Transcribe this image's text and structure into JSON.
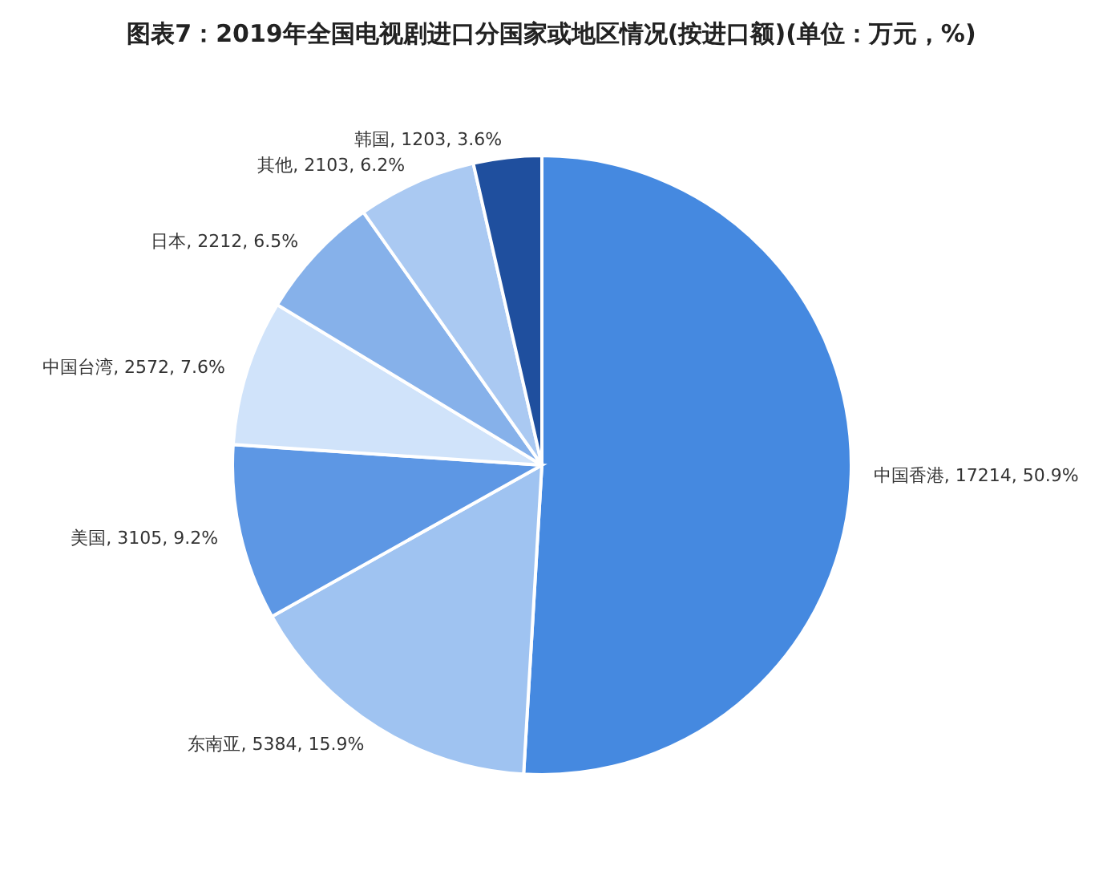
{
  "chart_data": {
    "type": "pie",
    "title": "图表7：2019年全国电视剧进口分国家或地区情况(按进口额)(单位：万元，%)",
    "categories": [
      "中国香港",
      "东南亚",
      "美国",
      "中国台湾",
      "日本",
      "其他",
      "韩国"
    ],
    "values": [
      17214,
      5384,
      3105,
      2572,
      2212,
      2103,
      1203
    ],
    "value_labels": [
      "17214, 50.9%",
      "5384, 15.9%",
      "3105, 9.2%",
      "2572, 7.6%",
      "2212, 6.5%",
      "2103, 6.2%",
      "1203, 3.6%"
    ],
    "colors": [
      "#4589e0",
      "#9fc3f1",
      "#5d97e4",
      "#d0e3fa",
      "#86b1ea",
      "#aac9f2",
      "#1f4f9e"
    ]
  }
}
